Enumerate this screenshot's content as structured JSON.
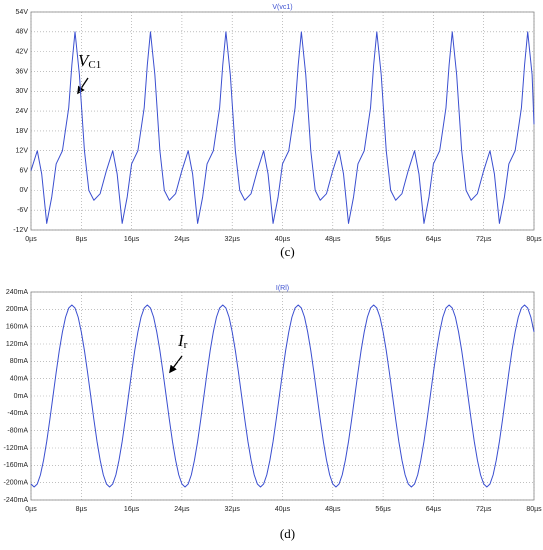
{
  "chart_data": [
    {
      "type": "line",
      "title": "V(vc1)",
      "panel_label": "(c)",
      "annotation": {
        "text": "V",
        "subscript": "C1"
      },
      "x": [
        0,
        1,
        1.7,
        2.5,
        3.3,
        4,
        5,
        6,
        6.5,
        7,
        7.7,
        8.5,
        9.2,
        10,
        11,
        12,
        13,
        13.7,
        14.5,
        15.3,
        16,
        17,
        18,
        18.5,
        19,
        19.7,
        20.5,
        21.2,
        22,
        23,
        24,
        25,
        25.7,
        26.5,
        27.3,
        28,
        29,
        30,
        30.5,
        31,
        31.7,
        32.5,
        33.2,
        34,
        35,
        36,
        37,
        37.7,
        38.5,
        39.3,
        40,
        41,
        42,
        42.5,
        43,
        43.7,
        44.5,
        45.2,
        46,
        47,
        48,
        49,
        49.7,
        50.5,
        51.3,
        52,
        53,
        54,
        54.5,
        55,
        55.7,
        56.5,
        57.2,
        58,
        59,
        60,
        61,
        61.7,
        62.5,
        63.3,
        64,
        65,
        66,
        66.5,
        67,
        67.7,
        68.5,
        69.2,
        70,
        71,
        72,
        73,
        73.7,
        74.5,
        75.3,
        76,
        77,
        78,
        78.5,
        79,
        79.7,
        80
      ],
      "series": [
        {
          "name": "V(vc1)",
          "color": "#3b4fd0",
          "values": [
            6,
            12,
            5,
            -10,
            -2,
            8,
            12,
            25,
            38,
            48,
            35,
            12,
            0,
            -3,
            -1,
            6,
            12,
            5,
            -10,
            -2,
            8,
            12,
            25,
            38,
            48,
            35,
            12,
            0,
            -3,
            -1,
            6,
            12,
            5,
            -10,
            -2,
            8,
            12,
            25,
            38,
            48,
            35,
            12,
            0,
            -3,
            -1,
            6,
            12,
            5,
            -10,
            -2,
            8,
            12,
            25,
            38,
            48,
            35,
            12,
            0,
            -3,
            -1,
            6,
            12,
            5,
            -10,
            -2,
            8,
            12,
            25,
            38,
            48,
            35,
            12,
            0,
            -3,
            -1,
            6,
            12,
            5,
            -10,
            -2,
            8,
            12,
            25,
            38,
            48,
            35,
            12,
            0,
            -3,
            -1,
            6,
            12,
            5,
            -10,
            -2,
            8,
            12,
            25,
            38,
            48,
            35,
            20
          ]
        }
      ],
      "xlim": [
        0,
        80
      ],
      "xticks": [
        {
          "value": 0,
          "label": "0µs"
        },
        {
          "value": 8,
          "label": "8µs"
        },
        {
          "value": 16,
          "label": "16µs"
        },
        {
          "value": 24,
          "label": "24µs"
        },
        {
          "value": 32,
          "label": "32µs"
        },
        {
          "value": 40,
          "label": "40µs"
        },
        {
          "value": 48,
          "label": "48µs"
        },
        {
          "value": 56,
          "label": "56µs"
        },
        {
          "value": 64,
          "label": "64µs"
        },
        {
          "value": 72,
          "label": "72µs"
        },
        {
          "value": 80,
          "label": "80µs"
        }
      ],
      "ylim": [
        -12,
        54
      ],
      "yticks": [
        {
          "value": -12,
          "label": "-12V"
        },
        {
          "value": -6,
          "label": "-6V"
        },
        {
          "value": 0,
          "label": "0V"
        },
        {
          "value": 6,
          "label": "6V"
        },
        {
          "value": 12,
          "label": "12V"
        },
        {
          "value": 18,
          "label": "18V"
        },
        {
          "value": 24,
          "label": "24V"
        },
        {
          "value": 30,
          "label": "30V"
        },
        {
          "value": 36,
          "label": "36V"
        },
        {
          "value": 42,
          "label": "42V"
        },
        {
          "value": 48,
          "label": "48V"
        },
        {
          "value": 54,
          "label": "54V"
        }
      ],
      "grid": true
    },
    {
      "type": "line",
      "title": "I(Rl)",
      "panel_label": "(d)",
      "annotation": {
        "text": "I",
        "subscript": "r"
      },
      "x": [
        0,
        0.5,
        1,
        1.5,
        2,
        2.5,
        3,
        3.5,
        4,
        4.5,
        5,
        5.5,
        6,
        6.5,
        7,
        7.5,
        8,
        8.5,
        9,
        9.5,
        10,
        10.5,
        11,
        11.5,
        12,
        12.5,
        13,
        13.5,
        14,
        14.5,
        15,
        15.5,
        16,
        16.5,
        17,
        17.5,
        18,
        18.5,
        19,
        19.5,
        20,
        20.5,
        21,
        21.5,
        22,
        22.5,
        23,
        23.5,
        24,
        24.5,
        25,
        25.5,
        26,
        26.5,
        27,
        27.5,
        28,
        28.5,
        29,
        29.5,
        30,
        30.5,
        31,
        31.5,
        32,
        32.5,
        33,
        33.5,
        34,
        34.5,
        35,
        35.5,
        36,
        36.5,
        37,
        37.5,
        38,
        38.5,
        39,
        39.5,
        40,
        40.5,
        41,
        41.5,
        42,
        42.5,
        43,
        43.5,
        44,
        44.5,
        45,
        45.5,
        46,
        46.5,
        47,
        47.5,
        48,
        48.5,
        49,
        49.5,
        50,
        50.5,
        51,
        51.5,
        52,
        52.5,
        53,
        53.5,
        54,
        54.5,
        55,
        55.5,
        56,
        56.5,
        57,
        57.5,
        58,
        58.5,
        59,
        59.5,
        60,
        60.5,
        61,
        61.5,
        62,
        62.5,
        63,
        63.5,
        64,
        64.5,
        65,
        65.5,
        66,
        66.5,
        67,
        67.5,
        68,
        68.5,
        69,
        69.5,
        70,
        70.5,
        71,
        71.5,
        72,
        72.5,
        73,
        73.5,
        74,
        74.5,
        75,
        75.5,
        76,
        76.5,
        77,
        77.5,
        78,
        78.5,
        79,
        79.5,
        80
      ],
      "series": [
        {
          "name": "I(Rl)",
          "color": "#3b4fd0",
          "values": [
            -203,
            -210,
            -203,
            -182,
            -148,
            -105,
            -54,
            0,
            54,
            105,
            148,
            182,
            203,
            210,
            203,
            182,
            148,
            105,
            54,
            0,
            -54,
            -105,
            -148,
            -182,
            -203,
            -210,
            -203,
            -182,
            -148,
            -105,
            -54,
            0,
            54,
            105,
            148,
            182,
            203,
            210,
            203,
            182,
            148,
            105,
            54,
            0,
            -54,
            -105,
            -148,
            -182,
            -203,
            -210,
            -203,
            -182,
            -148,
            -105,
            -54,
            0,
            54,
            105,
            148,
            182,
            203,
            210,
            203,
            182,
            148,
            105,
            54,
            0,
            -54,
            -105,
            -148,
            -182,
            -203,
            -210,
            -203,
            -182,
            -148,
            -105,
            -54,
            0,
            54,
            105,
            148,
            182,
            203,
            210,
            203,
            182,
            148,
            105,
            54,
            0,
            -54,
            -105,
            -148,
            -182,
            -203,
            -210,
            -203,
            -182,
            -148,
            -105,
            -54,
            0,
            54,
            105,
            148,
            182,
            203,
            210,
            203,
            182,
            148,
            105,
            54,
            0,
            -54,
            -105,
            -148,
            -182,
            -203,
            -210,
            -203,
            -182,
            -148,
            -105,
            -54,
            0,
            54,
            105,
            148,
            182,
            203,
            210,
            203,
            182,
            148,
            105,
            54,
            0,
            -54,
            -105,
            -148,
            -182,
            -203,
            -210,
            -203,
            -182,
            -148,
            -105,
            -54,
            0,
            54,
            105,
            148,
            182,
            203,
            210,
            203,
            182,
            148
          ]
        }
      ],
      "xlim": [
        0,
        80
      ],
      "xticks": [
        {
          "value": 0,
          "label": "0µs"
        },
        {
          "value": 8,
          "label": "8µs"
        },
        {
          "value": 16,
          "label": "16µs"
        },
        {
          "value": 24,
          "label": "24µs"
        },
        {
          "value": 32,
          "label": "32µs"
        },
        {
          "value": 40,
          "label": "40µs"
        },
        {
          "value": 48,
          "label": "48µs"
        },
        {
          "value": 56,
          "label": "56µs"
        },
        {
          "value": 64,
          "label": "64µs"
        },
        {
          "value": 72,
          "label": "72µs"
        },
        {
          "value": 80,
          "label": "80µs"
        }
      ],
      "ylim": [
        -240,
        240
      ],
      "yticks": [
        {
          "value": -240,
          "label": "-240mA"
        },
        {
          "value": -200,
          "label": "-200mA"
        },
        {
          "value": -160,
          "label": "-160mA"
        },
        {
          "value": -120,
          "label": "-120mA"
        },
        {
          "value": -80,
          "label": "-80mA"
        },
        {
          "value": -40,
          "label": "-40mA"
        },
        {
          "value": 0,
          "label": "0mA"
        },
        {
          "value": 40,
          "label": "40mA"
        },
        {
          "value": 80,
          "label": "80mA"
        },
        {
          "value": 120,
          "label": "120mA"
        },
        {
          "value": 160,
          "label": "160mA"
        },
        {
          "value": 200,
          "label": "200mA"
        },
        {
          "value": 240,
          "label": "240mA"
        }
      ],
      "grid": true
    }
  ]
}
